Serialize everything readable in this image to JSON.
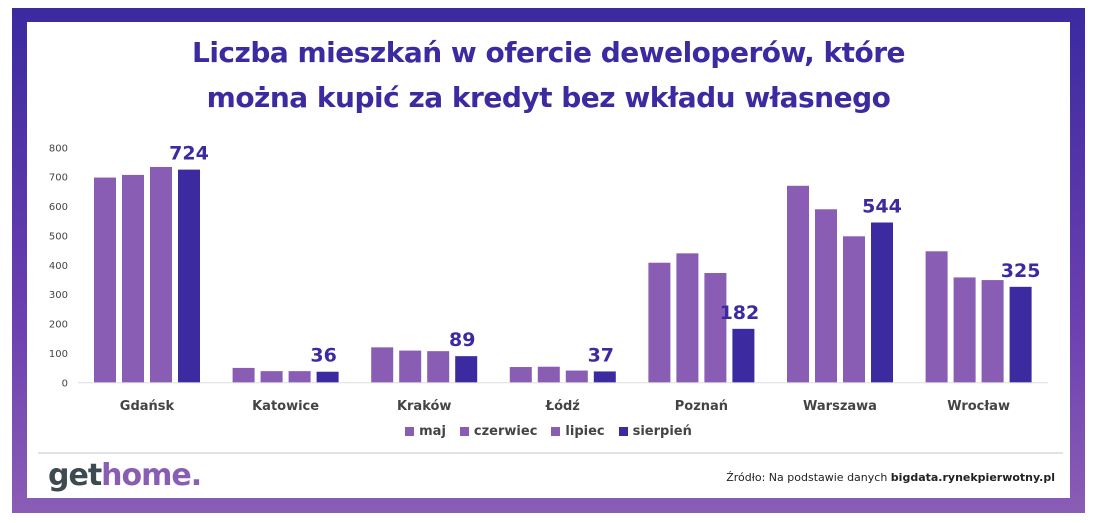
{
  "chart_data": {
    "type": "bar",
    "title": "Liczba mieszkań w ofercie deweloperów, które można kupić za kredyt bez wkładu własnego",
    "title_lines": [
      "Liczba mieszkań w ofercie deweloperów, które",
      "można kupić za kredyt bez wkładu własnego"
    ],
    "categories": [
      "Gdańsk",
      "Katowice",
      "Kraków",
      "Łódź",
      "Poznań",
      "Warszawa",
      "Wrocław"
    ],
    "series": [
      {
        "name": "maj",
        "color": "#8a5db5",
        "values": [
          697,
          49,
          119,
          52,
          407,
          669,
          446
        ]
      },
      {
        "name": "czerwiec",
        "color": "#8a5db5",
        "values": [
          706,
          38,
          108,
          53,
          439,
          589,
          357
        ]
      },
      {
        "name": "lipiec",
        "color": "#8a5db5",
        "values": [
          733,
          38,
          106,
          40,
          372,
          497,
          348
        ]
      },
      {
        "name": "sierpień",
        "color": "#3b2aa0",
        "values": [
          724,
          36,
          89,
          37,
          182,
          544,
          325
        ]
      }
    ],
    "data_labels_series": "sierpień",
    "yticks": [
      0,
      100,
      200,
      300,
      400,
      500,
      600,
      700,
      800
    ],
    "ylim": [
      0,
      800
    ],
    "grid": false,
    "legend_position": "bottom"
  },
  "footer": {
    "logo_part1": "get",
    "logo_part2": "home.",
    "source_prefix": "Źródło: Na podstawie danych ",
    "source_bold": "bigdata.rynekpierwotny.pl"
  }
}
